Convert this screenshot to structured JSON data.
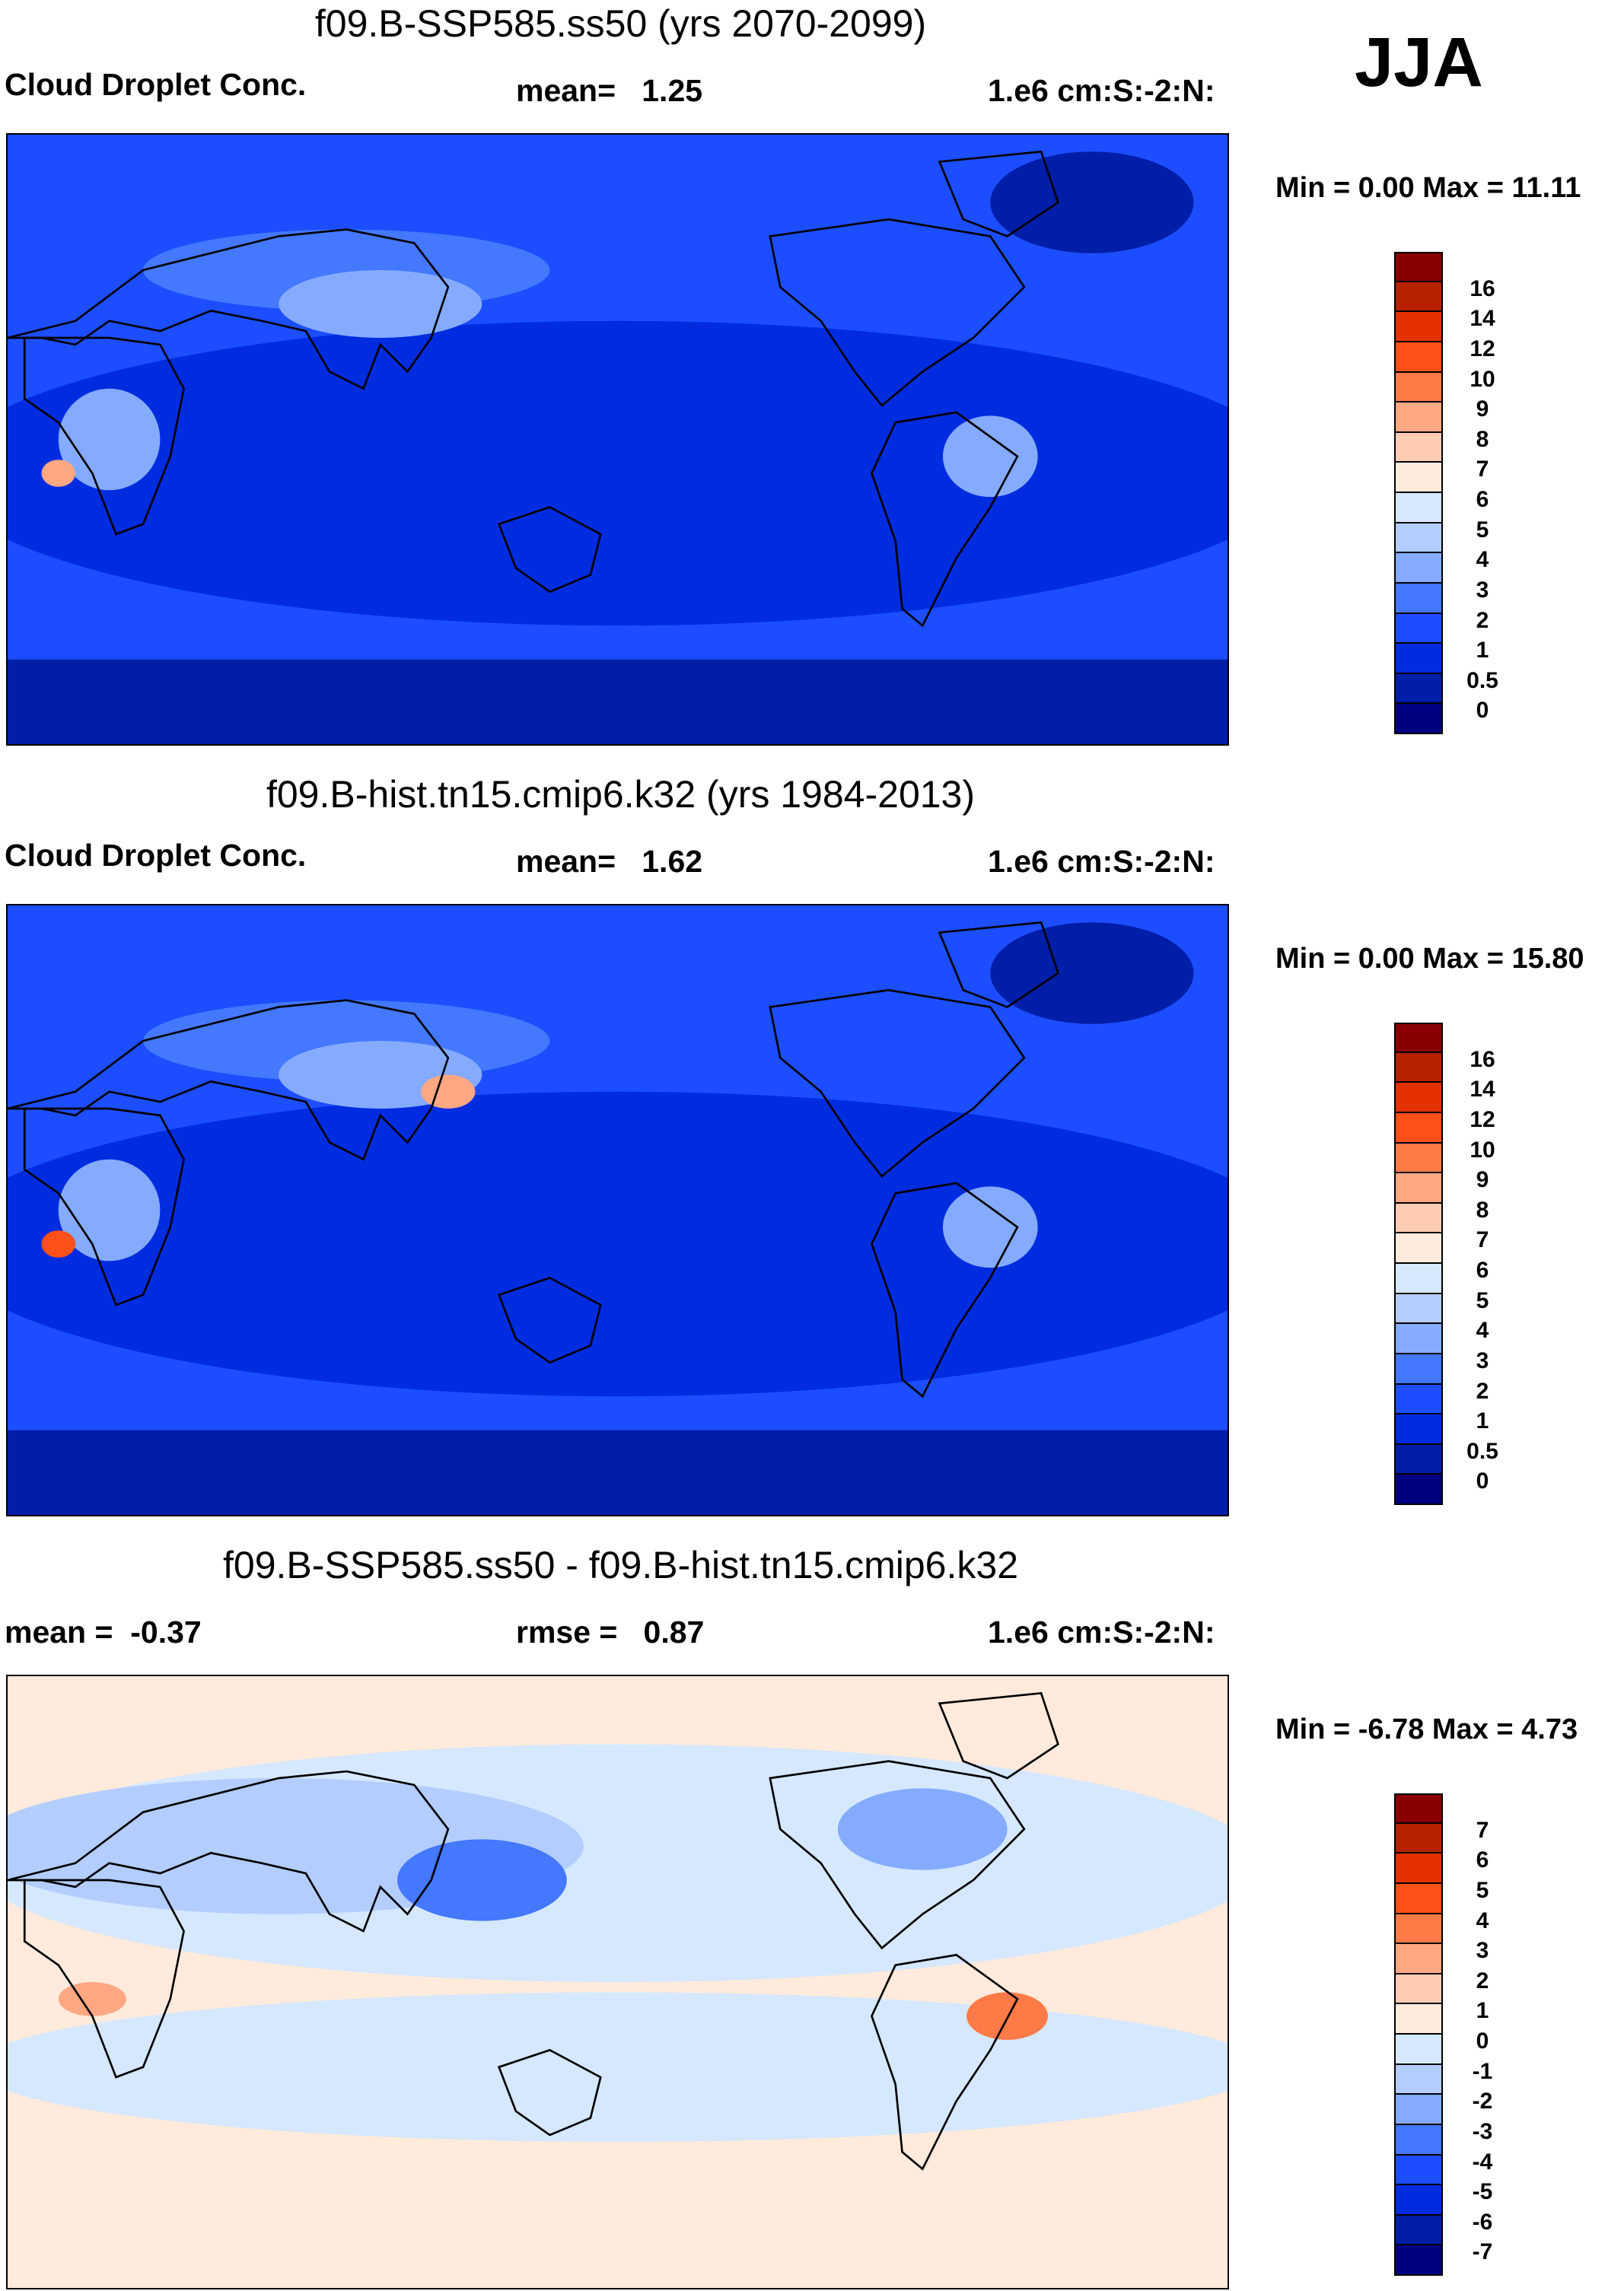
{
  "season": "JJA",
  "colors": [
    "#8a0000",
    "#b62200",
    "#e33200",
    "#fe5018",
    "#fe7a46",
    "#fea883",
    "#fecbb3",
    "#ffeadb",
    "#d5e8ff",
    "#b3cdff",
    "#84abff",
    "#4378ff",
    "#1c4eff",
    "#002ce0",
    "#001ea8",
    "#000080"
  ],
  "chart_data": [
    {
      "type": "heatmap",
      "title": "f09.B-SSP585.ss50 (yrs 2070-2099)",
      "variable": "Cloud Droplet Conc.",
      "mean_label": "mean=",
      "mean": "1.25",
      "units": "1.e6 cm:S:-2:N:",
      "minmax": "Min =   0.00 Max =  11.11",
      "levels": [
        "16",
        "14",
        "12",
        "10",
        "9",
        "8",
        "7",
        "6",
        "5",
        "4",
        "3",
        "2",
        "1",
        "0.5",
        "0"
      ]
    },
    {
      "type": "heatmap",
      "title": "f09.B-hist.tn15.cmip6.k32 (yrs 1984-2013)",
      "variable": "Cloud Droplet Conc.",
      "mean_label": "mean=",
      "mean": "1.62",
      "units": "1.e6 cm:S:-2:N:",
      "minmax": "Min =   0.00 Max =  15.80",
      "levels": [
        "16",
        "14",
        "12",
        "10",
        "9",
        "8",
        "7",
        "6",
        "5",
        "4",
        "3",
        "2",
        "1",
        "0.5",
        "0"
      ]
    },
    {
      "type": "heatmap",
      "title": "f09.B-SSP585.ss50 - f09.B-hist.tn15.cmip6.k32",
      "mean_label": "mean =",
      "mean": "-0.37",
      "rmse_label": "rmse =",
      "rmse": "0.87",
      "units": "1.e6 cm:S:-2:N:",
      "minmax": "Min =  -6.78 Max =   4.73",
      "levels": [
        "7",
        "6",
        "5",
        "4",
        "3",
        "2",
        "1",
        "0",
        "-1",
        "-2",
        "-3",
        "-4",
        "-5",
        "-6",
        "-7"
      ]
    }
  ]
}
